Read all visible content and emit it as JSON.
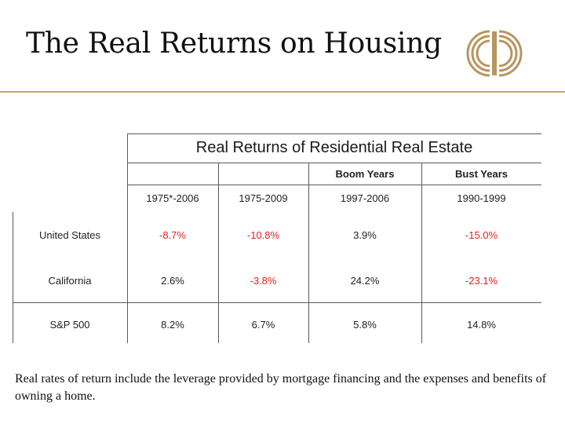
{
  "slide": {
    "title": "The Real Returns on Housing",
    "caption": "Real rates of return include the leverage provided by mortgage financing and the expenses and benefits of owning a home."
  },
  "colors": {
    "accent": "#c9a56b",
    "negative": "#e0211b"
  },
  "table": {
    "title": "Real Returns of Residential Real Estate",
    "group_headers": {
      "boom": "Boom Years",
      "bust": "Bust Years"
    },
    "periods": [
      "1975*-2006",
      "1975-2009",
      "1997-2006",
      "1990-1999"
    ],
    "rows": [
      {
        "label": "United States",
        "values": [
          "-8.7%",
          "-10.8%",
          "3.9%",
          "-15.0%"
        ]
      },
      {
        "label": "California",
        "values": [
          "2.6%",
          "-3.8%",
          "24.2%",
          "-23.1%"
        ]
      },
      {
        "label": "S&P 500",
        "values": [
          "8.2%",
          "6.7%",
          "5.8%",
          "14.8%"
        ]
      }
    ]
  }
}
